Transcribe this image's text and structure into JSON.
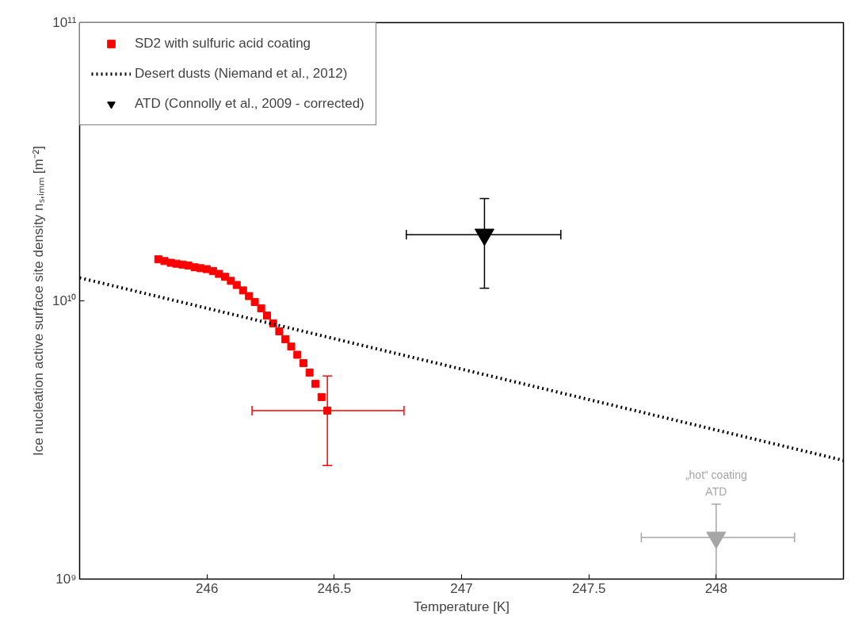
{
  "chart_data": {
    "type": "scatter",
    "xlabel": "Temperature [K]",
    "ylabel": "Ice nucleation active surface site density nₛ,ᵢₘₘ [m⁻²]",
    "xlim": [
      245.5,
      248.5
    ],
    "xticks": [
      246,
      246.5,
      247,
      247.5,
      248
    ],
    "ylim": [
      1000000000.0,
      100000000000.0
    ],
    "yticks": [
      {
        "value": 1000000000.0,
        "label": "10⁹"
      },
      {
        "value": 10000000000.0,
        "label": "10¹⁰"
      },
      {
        "value": 100000000000.0,
        "label": "10¹¹"
      }
    ],
    "log": "y",
    "grid": false,
    "legend": "top left",
    "annotations": [
      {
        "text": "„hot“ coating\nATD",
        "x": 248.0,
        "y": 1860000000.0
      }
    ],
    "series": [
      {
        "name": "SD2 with sulfuric acid coating",
        "type": "scatter",
        "marker": "square",
        "color": "#ff0000",
        "x": [
          245.809,
          245.833,
          245.858,
          245.88,
          245.904,
          245.927,
          245.952,
          245.975,
          245.999,
          246.024,
          246.047,
          246.071,
          246.094,
          246.117,
          246.142,
          246.165,
          246.188,
          246.213,
          246.236,
          246.26,
          246.284,
          246.308,
          246.331,
          246.355,
          246.379,
          246.403,
          246.426,
          246.45,
          246.473
        ],
        "values": [
          14100000000.0,
          13900000000.0,
          13700000000.0,
          13600000000.0,
          13500000000.0,
          13400000000.0,
          13200000000.0,
          13100000000.0,
          13000000000.0,
          12800000000.0,
          12500000000.0,
          12200000000.0,
          11800000000.0,
          11400000000.0,
          10900000000.0,
          10400000000.0,
          9900000000.0,
          9400000000.0,
          8850000000.0,
          8300000000.0,
          7770000000.0,
          7280000000.0,
          6850000000.0,
          6400000000.0,
          5970000000.0,
          5520000000.0,
          5030000000.0,
          4510000000.0,
          4030000000.0
        ],
        "errors": [
          null,
          null,
          null,
          null,
          null,
          null,
          null,
          null,
          null,
          null,
          null,
          null,
          null,
          null,
          null,
          null,
          null,
          null,
          null,
          null,
          null,
          null,
          null,
          null,
          null,
          null,
          null,
          null,
          [
            2560000000.0,
            5370000000.0
          ]
        ],
        "xerrors": [
          null,
          null,
          null,
          null,
          null,
          null,
          null,
          null,
          null,
          null,
          null,
          null,
          null,
          null,
          null,
          null,
          null,
          null,
          null,
          null,
          null,
          null,
          null,
          null,
          null,
          null,
          null,
          null,
          [
            246.177,
            246.774
          ]
        ]
      },
      {
        "name": "Desert dusts (Niemand et al., 2012)",
        "type": "line",
        "line_style": "dotted",
        "marker": "none",
        "color": "#000000",
        "x": [
          245.5,
          248.5
        ],
        "values": [
          12100000000.0,
          2670000000.0
        ]
      },
      {
        "name": "ATD (Connolly et al., 2009 - corrected)",
        "type": "scatter",
        "marker": "triangle",
        "color": "#000000",
        "x": [
          247.09
        ],
        "values": [
          17300000000.0
        ],
        "errors": [
          [
            11100000000.0,
            23300000000.0
          ]
        ],
        "xerrors": [
          [
            246.783,
            247.39
          ]
        ]
      },
      {
        "marker": "triangle",
        "color": "#a6a6a6",
        "x": [
          248.0
        ],
        "values": [
          1410000000.0
        ],
        "errors": [
          [
            1000000000.0,
            1860000000.0
          ]
        ],
        "xerrors": [
          [
            247.706,
            248.308
          ]
        ]
      }
    ]
  }
}
